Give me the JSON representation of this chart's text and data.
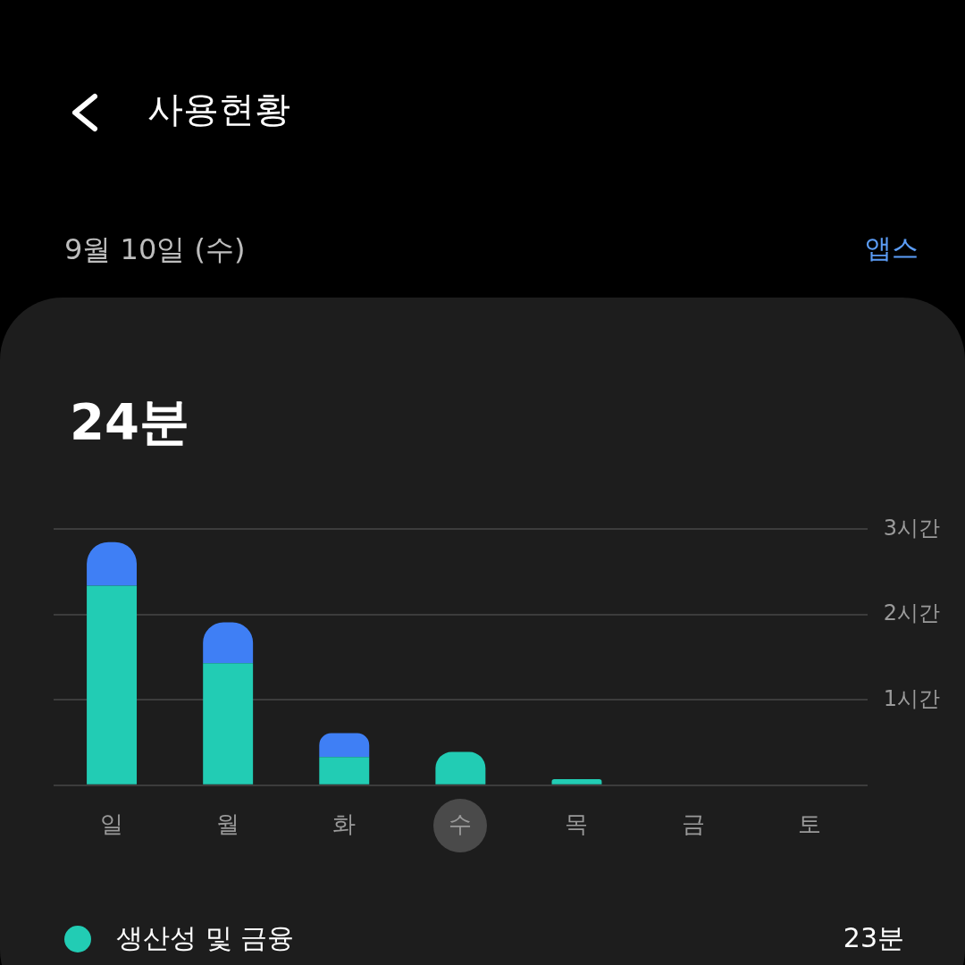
{
  "chart_data": {
    "type": "bar",
    "title": "사용현황",
    "subtitle": "9월 10일 (수)",
    "annotations": [
      "앱스",
      "24분",
      "23분"
    ],
    "categories": [
      "일",
      "월",
      "화",
      "수",
      "목",
      "금",
      "토"
    ],
    "series": [
      {
        "name": "생산성 및 금융",
        "color": "#22ccb4",
        "values": [
          2.34,
          1.43,
          0.33,
          0.39,
          0.07,
          0,
          0
        ]
      },
      {
        "color": "#3f7ff5",
        "values": [
          0.51,
          0.48,
          0.28,
          0,
          0,
          0,
          0
        ]
      }
    ],
    "stacked": true,
    "ylim": [
      0,
      3
    ],
    "yticks": [
      {
        "value": 0,
        "label": null
      },
      {
        "value": 1,
        "label": "1시간"
      },
      {
        "value": 2,
        "label": "2시간"
      },
      {
        "value": 3,
        "label": "3시간"
      }
    ],
    "grid": "y",
    "legend": "bottom"
  }
}
